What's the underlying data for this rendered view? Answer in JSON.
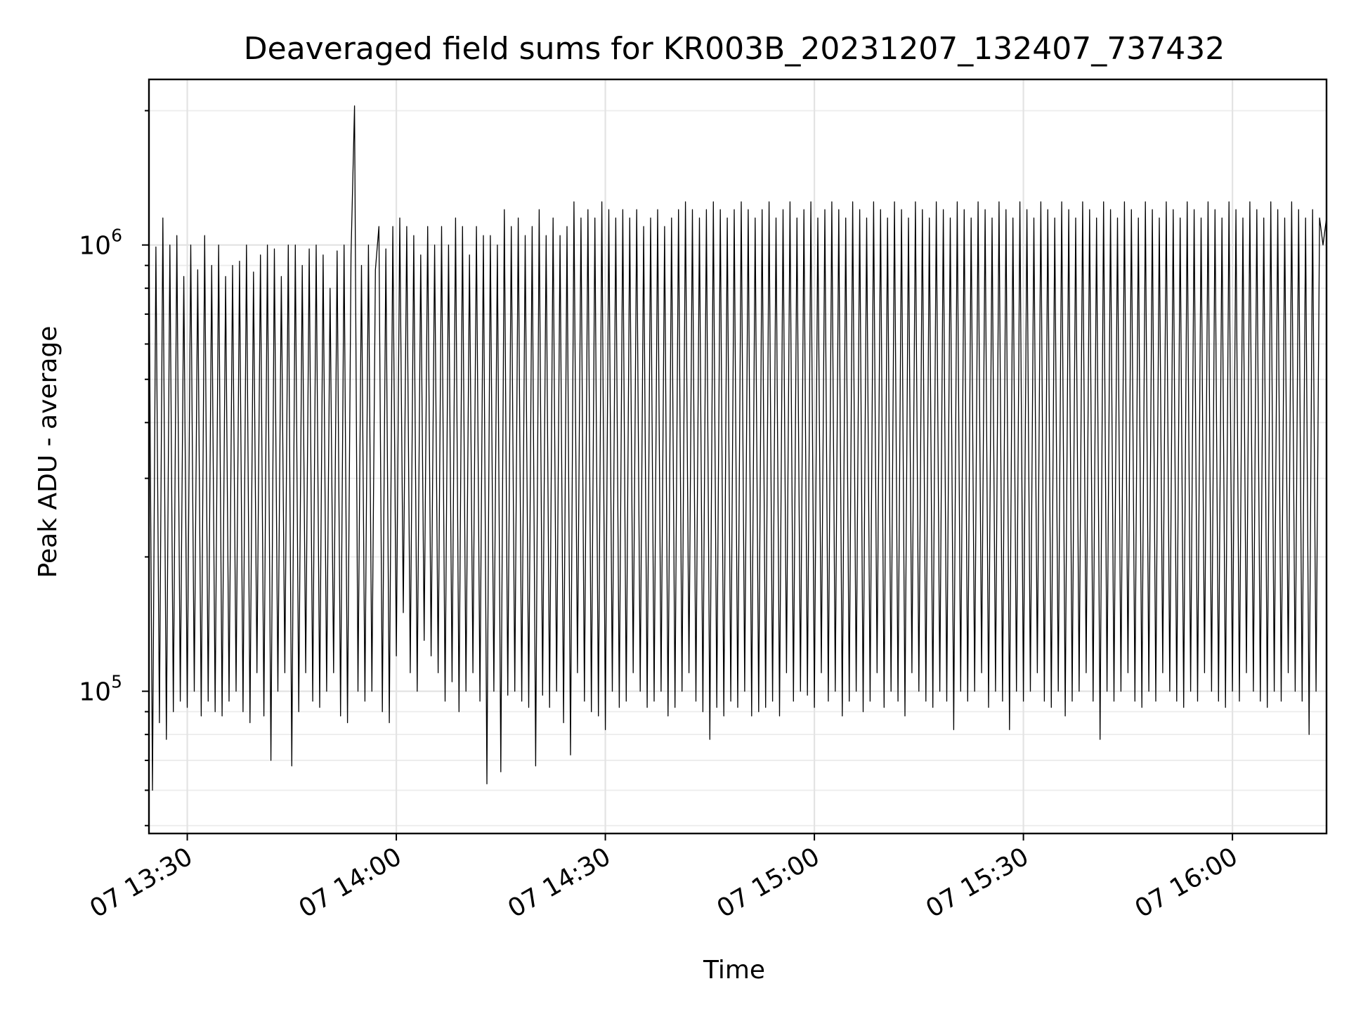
{
  "chart_data": {
    "type": "line",
    "title": "Deaveraged field sums for KR003B_20231207_132407_737432",
    "xlabel": "Time",
    "ylabel": "Peak ADU - average",
    "xlim": [
      "2023-12-07T13:24:30",
      "2023-12-07T16:13:30"
    ],
    "ylim": [
      48000,
      2350000
    ],
    "yscale": "log",
    "x_ticks": [
      {
        "value": "2023-12-07T13:30:00",
        "label": "07 13:30"
      },
      {
        "value": "2023-12-07T14:00:00",
        "label": "07 14:00"
      },
      {
        "value": "2023-12-07T14:30:00",
        "label": "07 14:30"
      },
      {
        "value": "2023-12-07T15:00:00",
        "label": "07 15:00"
      },
      {
        "value": "2023-12-07T15:30:00",
        "label": "07 15:30"
      },
      {
        "value": "2023-12-07T16:00:00",
        "label": "07 16:00"
      }
    ],
    "y_ticks": [
      {
        "value": 100000,
        "label": "10",
        "exponent": "5"
      },
      {
        "value": 1000000,
        "label": "10",
        "exponent": "6"
      }
    ],
    "grid": true,
    "legend": "none",
    "line_color": "#000000",
    "series": [
      {
        "x": [
          "2023-12-07T13:24:30",
          "2023-12-07T13:25:00",
          "2023-12-07T13:25:30",
          "2023-12-07T13:26:00",
          "2023-12-07T13:26:30",
          "2023-12-07T13:27:00",
          "2023-12-07T13:27:30",
          "2023-12-07T13:28:00",
          "2023-12-07T13:28:30",
          "2023-12-07T13:29:00",
          "2023-12-07T13:29:30",
          "2023-12-07T13:30:00",
          "2023-12-07T13:30:30",
          "2023-12-07T13:31:00",
          "2023-12-07T13:31:30",
          "2023-12-07T13:32:00",
          "2023-12-07T13:32:30",
          "2023-12-07T13:33:00",
          "2023-12-07T13:33:30",
          "2023-12-07T13:34:00",
          "2023-12-07T13:34:30",
          "2023-12-07T13:35:00",
          "2023-12-07T13:35:30",
          "2023-12-07T13:36:00",
          "2023-12-07T13:36:30",
          "2023-12-07T13:37:00",
          "2023-12-07T13:37:30",
          "2023-12-07T13:38:00",
          "2023-12-07T13:38:30",
          "2023-12-07T13:39:00",
          "2023-12-07T13:39:30",
          "2023-12-07T13:40:00",
          "2023-12-07T13:40:30",
          "2023-12-07T13:41:00",
          "2023-12-07T13:41:30",
          "2023-12-07T13:42:00",
          "2023-12-07T13:42:30",
          "2023-12-07T13:43:00",
          "2023-12-07T13:43:30",
          "2023-12-07T13:44:00",
          "2023-12-07T13:44:30",
          "2023-12-07T13:45:00",
          "2023-12-07T13:45:30",
          "2023-12-07T13:46:00",
          "2023-12-07T13:46:30",
          "2023-12-07T13:47:00",
          "2023-12-07T13:47:30",
          "2023-12-07T13:48:00",
          "2023-12-07T13:48:30",
          "2023-12-07T13:49:00",
          "2023-12-07T13:49:30",
          "2023-12-07T13:50:00",
          "2023-12-07T13:50:30",
          "2023-12-07T13:51:00",
          "2023-12-07T13:51:30",
          "2023-12-07T13:52:00",
          "2023-12-07T13:52:30",
          "2023-12-07T13:53:00",
          "2023-12-07T13:53:30",
          "2023-12-07T13:54:00",
          "2023-12-07T13:54:30",
          "2023-12-07T13:55:00",
          "2023-12-07T13:55:30",
          "2023-12-07T13:56:00",
          "2023-12-07T13:56:30",
          "2023-12-07T13:57:00",
          "2023-12-07T13:57:30",
          "2023-12-07T13:58:00",
          "2023-12-07T13:58:30",
          "2023-12-07T13:59:00",
          "2023-12-07T13:59:30",
          "2023-12-07T14:00:00",
          "2023-12-07T14:00:30",
          "2023-12-07T14:01:00",
          "2023-12-07T14:01:30",
          "2023-12-07T14:02:00",
          "2023-12-07T14:02:30",
          "2023-12-07T14:03:00",
          "2023-12-07T14:03:30",
          "2023-12-07T14:04:00",
          "2023-12-07T14:04:30",
          "2023-12-07T14:05:00",
          "2023-12-07T14:05:30",
          "2023-12-07T14:06:00",
          "2023-12-07T14:06:30",
          "2023-12-07T14:07:00",
          "2023-12-07T14:07:30",
          "2023-12-07T14:08:00",
          "2023-12-07T14:08:30",
          "2023-12-07T14:09:00",
          "2023-12-07T14:09:30",
          "2023-12-07T14:10:00",
          "2023-12-07T14:10:30",
          "2023-12-07T14:11:00",
          "2023-12-07T14:11:30",
          "2023-12-07T14:12:00",
          "2023-12-07T14:12:30",
          "2023-12-07T14:13:00",
          "2023-12-07T14:13:30",
          "2023-12-07T14:14:00",
          "2023-12-07T14:14:30",
          "2023-12-07T14:15:00",
          "2023-12-07T14:15:30",
          "2023-12-07T14:16:00",
          "2023-12-07T14:16:30",
          "2023-12-07T14:17:00",
          "2023-12-07T14:17:30",
          "2023-12-07T14:18:00",
          "2023-12-07T14:18:30",
          "2023-12-07T14:19:00",
          "2023-12-07T14:19:30",
          "2023-12-07T14:20:00",
          "2023-12-07T14:20:30",
          "2023-12-07T14:21:00",
          "2023-12-07T14:21:30",
          "2023-12-07T14:22:00",
          "2023-12-07T14:22:30",
          "2023-12-07T14:23:00",
          "2023-12-07T14:23:30",
          "2023-12-07T14:24:00",
          "2023-12-07T14:24:30",
          "2023-12-07T14:25:00",
          "2023-12-07T14:25:30",
          "2023-12-07T14:26:00",
          "2023-12-07T14:26:30",
          "2023-12-07T14:27:00",
          "2023-12-07T14:27:30",
          "2023-12-07T14:28:00",
          "2023-12-07T14:28:30",
          "2023-12-07T14:29:00",
          "2023-12-07T14:29:30",
          "2023-12-07T14:30:00",
          "2023-12-07T14:30:30",
          "2023-12-07T14:31:00",
          "2023-12-07T14:31:30",
          "2023-12-07T14:32:00",
          "2023-12-07T14:32:30",
          "2023-12-07T14:33:00",
          "2023-12-07T14:33:30",
          "2023-12-07T14:34:00",
          "2023-12-07T14:34:30",
          "2023-12-07T14:35:00",
          "2023-12-07T14:35:30",
          "2023-12-07T14:36:00",
          "2023-12-07T14:36:30",
          "2023-12-07T14:37:00",
          "2023-12-07T14:37:30",
          "2023-12-07T14:38:00",
          "2023-12-07T14:38:30",
          "2023-12-07T14:39:00",
          "2023-12-07T14:39:30",
          "2023-12-07T14:40:00",
          "2023-12-07T14:40:30",
          "2023-12-07T14:41:00",
          "2023-12-07T14:41:30",
          "2023-12-07T14:42:00",
          "2023-12-07T14:42:30",
          "2023-12-07T14:43:00",
          "2023-12-07T14:43:30",
          "2023-12-07T14:44:00",
          "2023-12-07T14:44:30",
          "2023-12-07T14:45:00",
          "2023-12-07T14:45:30",
          "2023-12-07T14:46:00",
          "2023-12-07T14:46:30",
          "2023-12-07T14:47:00",
          "2023-12-07T14:47:30",
          "2023-12-07T14:48:00",
          "2023-12-07T14:48:30",
          "2023-12-07T14:49:00",
          "2023-12-07T14:49:30",
          "2023-12-07T14:50:00",
          "2023-12-07T14:50:30",
          "2023-12-07T14:51:00",
          "2023-12-07T14:51:30",
          "2023-12-07T14:52:00",
          "2023-12-07T14:52:30",
          "2023-12-07T14:53:00",
          "2023-12-07T14:53:30",
          "2023-12-07T14:54:00",
          "2023-12-07T14:54:30",
          "2023-12-07T14:55:00",
          "2023-12-07T14:55:30",
          "2023-12-07T14:56:00",
          "2023-12-07T14:56:30",
          "2023-12-07T14:57:00",
          "2023-12-07T14:57:30",
          "2023-12-07T14:58:00",
          "2023-12-07T14:58:30",
          "2023-12-07T14:59:00",
          "2023-12-07T14:59:30",
          "2023-12-07T15:00:00",
          "2023-12-07T15:00:30",
          "2023-12-07T15:01:00",
          "2023-12-07T15:01:30",
          "2023-12-07T15:02:00",
          "2023-12-07T15:02:30",
          "2023-12-07T15:03:00",
          "2023-12-07T15:03:30",
          "2023-12-07T15:04:00",
          "2023-12-07T15:04:30",
          "2023-12-07T15:05:00",
          "2023-12-07T15:05:30",
          "2023-12-07T15:06:00",
          "2023-12-07T15:06:30",
          "2023-12-07T15:07:00",
          "2023-12-07T15:07:30",
          "2023-12-07T15:08:00",
          "2023-12-07T15:08:30",
          "2023-12-07T15:09:00",
          "2023-12-07T15:09:30",
          "2023-12-07T15:10:00",
          "2023-12-07T15:10:30",
          "2023-12-07T15:11:00",
          "2023-12-07T15:11:30",
          "2023-12-07T15:12:00",
          "2023-12-07T15:12:30",
          "2023-12-07T15:13:00",
          "2023-12-07T15:13:30",
          "2023-12-07T15:14:00",
          "2023-12-07T15:14:30",
          "2023-12-07T15:15:00",
          "2023-12-07T15:15:30",
          "2023-12-07T15:16:00",
          "2023-12-07T15:16:30",
          "2023-12-07T15:17:00",
          "2023-12-07T15:17:30",
          "2023-12-07T15:18:00",
          "2023-12-07T15:18:30",
          "2023-12-07T15:19:00",
          "2023-12-07T15:19:30",
          "2023-12-07T15:20:00",
          "2023-12-07T15:20:30",
          "2023-12-07T15:21:00",
          "2023-12-07T15:21:30",
          "2023-12-07T15:22:00",
          "2023-12-07T15:22:30",
          "2023-12-07T15:23:00",
          "2023-12-07T15:23:30",
          "2023-12-07T15:24:00",
          "2023-12-07T15:24:30",
          "2023-12-07T15:25:00",
          "2023-12-07T15:25:30",
          "2023-12-07T15:26:00",
          "2023-12-07T15:26:30",
          "2023-12-07T15:27:00",
          "2023-12-07T15:27:30",
          "2023-12-07T15:28:00",
          "2023-12-07T15:28:30",
          "2023-12-07T15:29:00",
          "2023-12-07T15:29:30",
          "2023-12-07T15:30:00",
          "2023-12-07T15:30:30",
          "2023-12-07T15:31:00",
          "2023-12-07T15:31:30",
          "2023-12-07T15:32:00",
          "2023-12-07T15:32:30",
          "2023-12-07T15:33:00",
          "2023-12-07T15:33:30",
          "2023-12-07T15:34:00",
          "2023-12-07T15:34:30",
          "2023-12-07T15:35:00",
          "2023-12-07T15:35:30",
          "2023-12-07T15:36:00",
          "2023-12-07T15:36:30",
          "2023-12-07T15:37:00",
          "2023-12-07T15:37:30",
          "2023-12-07T15:38:00",
          "2023-12-07T15:38:30",
          "2023-12-07T15:39:00",
          "2023-12-07T15:39:30",
          "2023-12-07T15:40:00",
          "2023-12-07T15:40:30",
          "2023-12-07T15:41:00",
          "2023-12-07T15:41:30",
          "2023-12-07T15:42:00",
          "2023-12-07T15:42:30",
          "2023-12-07T15:43:00",
          "2023-12-07T15:43:30",
          "2023-12-07T15:44:00",
          "2023-12-07T15:44:30",
          "2023-12-07T15:45:00",
          "2023-12-07T15:45:30",
          "2023-12-07T15:46:00",
          "2023-12-07T15:46:30",
          "2023-12-07T15:47:00",
          "2023-12-07T15:47:30",
          "2023-12-07T15:48:00",
          "2023-12-07T15:48:30",
          "2023-12-07T15:49:00",
          "2023-12-07T15:49:30",
          "2023-12-07T15:50:00",
          "2023-12-07T15:50:30",
          "2023-12-07T15:51:00",
          "2023-12-07T15:51:30",
          "2023-12-07T15:52:00",
          "2023-12-07T15:52:30",
          "2023-12-07T15:53:00",
          "2023-12-07T15:53:30",
          "2023-12-07T15:54:00",
          "2023-12-07T15:54:30",
          "2023-12-07T15:55:00",
          "2023-12-07T15:55:30",
          "2023-12-07T15:56:00",
          "2023-12-07T15:56:30",
          "2023-12-07T15:57:00",
          "2023-12-07T15:57:30",
          "2023-12-07T15:58:00",
          "2023-12-07T15:58:30",
          "2023-12-07T15:59:00",
          "2023-12-07T15:59:30",
          "2023-12-07T16:00:00",
          "2023-12-07T16:00:30",
          "2023-12-07T16:01:00",
          "2023-12-07T16:01:30",
          "2023-12-07T16:02:00",
          "2023-12-07T16:02:30",
          "2023-12-07T16:03:00",
          "2023-12-07T16:03:30",
          "2023-12-07T16:04:00",
          "2023-12-07T16:04:30",
          "2023-12-07T16:05:00",
          "2023-12-07T16:05:30",
          "2023-12-07T16:06:00",
          "2023-12-07T16:06:30",
          "2023-12-07T16:07:00",
          "2023-12-07T16:07:30",
          "2023-12-07T16:08:00",
          "2023-12-07T16:08:30",
          "2023-12-07T16:09:00",
          "2023-12-07T16:09:30",
          "2023-12-07T16:10:00",
          "2023-12-07T16:10:30",
          "2023-12-07T16:11:00",
          "2023-12-07T16:11:30",
          "2023-12-07T16:12:00",
          "2023-12-07T16:12:30",
          "2023-12-07T16:13:00",
          "2023-12-07T16:13:30"
        ],
        "y": [
          1050000,
          60000,
          990000,
          85000,
          1150000,
          78000,
          1000000,
          90000,
          1050000,
          95000,
          850000,
          92000,
          1000000,
          100000,
          880000,
          88000,
          1050000,
          95000,
          900000,
          90000,
          1000000,
          88000,
          850000,
          95000,
          900000,
          100000,
          920000,
          90000,
          1000000,
          85000,
          870000,
          110000,
          950000,
          88000,
          1000000,
          70000,
          980000,
          100000,
          850000,
          110000,
          1000000,
          68000,
          1000000,
          90000,
          900000,
          110000,
          980000,
          95000,
          1000000,
          92000,
          950000,
          100000,
          800000,
          110000,
          970000,
          88000,
          1000000,
          85000,
          950000,
          2050000,
          100000,
          900000,
          95000,
          1000000,
          100000,
          880000,
          1100000,
          90000,
          980000,
          85000,
          1100000,
          120000,
          1150000,
          150000,
          1100000,
          110000,
          1050000,
          100000,
          950000,
          130000,
          1100000,
          120000,
          1000000,
          110000,
          1100000,
          95000,
          1000000,
          105000,
          1150000,
          90000,
          1100000,
          100000,
          950000,
          110000,
          1100000,
          95000,
          1050000,
          62000,
          1050000,
          100000,
          1000000,
          66000,
          1200000,
          98000,
          1100000,
          100000,
          1150000,
          95000,
          1050000,
          92000,
          1100000,
          68000,
          1200000,
          98000,
          1050000,
          92000,
          1150000,
          100000,
          1050000,
          85000,
          1100000,
          72000,
          1250000,
          110000,
          1150000,
          95000,
          1200000,
          90000,
          1150000,
          88000,
          1250000,
          82000,
          1200000,
          100000,
          1150000,
          92000,
          1200000,
          95000,
          1150000,
          110000,
          1200000,
          100000,
          1100000,
          92000,
          1150000,
          95000,
          1200000,
          100000,
          1100000,
          88000,
          1150000,
          92000,
          1200000,
          100000,
          1250000,
          110000,
          1200000,
          95000,
          1150000,
          90000,
          1200000,
          78000,
          1250000,
          92000,
          1200000,
          88000,
          1150000,
          95000,
          1200000,
          92000,
          1250000,
          100000,
          1200000,
          88000,
          1150000,
          90000,
          1200000,
          92000,
          1250000,
          95000,
          1150000,
          88000,
          1200000,
          110000,
          1250000,
          95000,
          1150000,
          100000,
          1200000,
          98000,
          1250000,
          92000,
          1150000,
          110000,
          1200000,
          95000,
          1250000,
          100000,
          1200000,
          88000,
          1150000,
          95000,
          1250000,
          100000,
          1200000,
          90000,
          1150000,
          95000,
          1250000,
          110000,
          1200000,
          92000,
          1150000,
          100000,
          1250000,
          95000,
          1200000,
          88000,
          1150000,
          110000,
          1250000,
          100000,
          1200000,
          95000,
          1150000,
          92000,
          1250000,
          100000,
          1200000,
          95000,
          1150000,
          82000,
          1250000,
          100000,
          1200000,
          95000,
          1150000,
          100000,
          1250000,
          110000,
          1200000,
          92000,
          1150000,
          100000,
          1250000,
          95000,
          1200000,
          82000,
          1150000,
          100000,
          1250000,
          95000,
          1200000,
          100000,
          1150000,
          110000,
          1250000,
          95000,
          1200000,
          92000,
          1150000,
          100000,
          1250000,
          88000,
          1200000,
          95000,
          1150000,
          100000,
          1250000,
          110000,
          1200000,
          95000,
          1150000,
          78000,
          1250000,
          100000,
          1200000,
          95000,
          1150000,
          100000,
          1250000,
          110000,
          1200000,
          95000,
          1150000,
          92000,
          1250000,
          100000,
          1200000,
          95000,
          1150000,
          110000,
          1250000,
          100000,
          1200000,
          95000,
          1150000,
          92000,
          1250000,
          100000,
          1200000,
          95000,
          1150000,
          110000,
          1250000,
          100000,
          1200000,
          95000,
          1150000,
          92000,
          1250000,
          100000,
          1200000,
          95000,
          1150000,
          110000,
          1250000,
          100000,
          1200000,
          95000,
          1150000,
          92000,
          1250000,
          100000,
          1200000,
          95000,
          1150000,
          110000,
          1250000,
          100000,
          1200000,
          95000,
          1150000,
          80000,
          1200000,
          100000,
          1150000,
          1000000,
          1150000
        ]
      }
    ]
  }
}
